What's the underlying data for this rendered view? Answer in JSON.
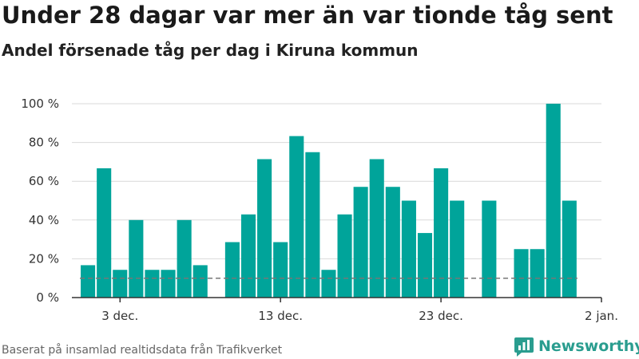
{
  "title": "Under 28 dagar var mer än var tionde tåg sent",
  "subtitle": "Andel försenade tåg per dag i Kiruna kommun",
  "source": "Baserat på insamlad realtidsdata från Trafikverket",
  "brand": {
    "name": "Newsworthy",
    "icon": "bar-chart-logo-icon",
    "color": "#2a9d8f"
  },
  "chart_data": {
    "type": "bar",
    "x_domain": [
      "2024-11-30",
      "2025-01-02"
    ],
    "x": [
      "2024-12-01",
      "2024-12-02",
      "2024-12-03",
      "2024-12-04",
      "2024-12-05",
      "2024-12-06",
      "2024-12-07",
      "2024-12-08",
      "2024-12-09",
      "2024-12-10",
      "2024-12-11",
      "2024-12-12",
      "2024-12-13",
      "2024-12-14",
      "2024-12-15",
      "2024-12-16",
      "2024-12-17",
      "2024-12-18",
      "2024-12-19",
      "2024-12-20",
      "2024-12-21",
      "2024-12-22",
      "2024-12-23",
      "2024-12-24",
      "2024-12-25",
      "2024-12-26",
      "2024-12-27",
      "2024-12-28",
      "2024-12-29",
      "2024-12-30",
      "2024-12-31",
      "2025-01-01"
    ],
    "values": [
      16.7,
      66.7,
      14.3,
      40,
      14.3,
      14.3,
      40,
      16.7,
      null,
      28.6,
      42.9,
      71.4,
      28.6,
      83.3,
      75,
      14.3,
      42.9,
      57.1,
      71.4,
      57.1,
      50,
      33.3,
      66.7,
      50,
      null,
      50,
      null,
      25,
      25,
      100,
      50,
      null
    ],
    "bar_color": "#00a49a",
    "reference_line": {
      "value": 10,
      "style": "dashed",
      "color": "#777777"
    },
    "x_ticks": [
      {
        "x": "2024-12-03",
        "label": "3 dec."
      },
      {
        "x": "2024-12-13",
        "label": "13 dec."
      },
      {
        "x": "2024-12-23",
        "label": "23 dec."
      },
      {
        "x": "2025-01-02",
        "label": "2 jan."
      }
    ],
    "y_ticks": [
      {
        "value": 0,
        "label": "0 %"
      },
      {
        "value": 20,
        "label": "20 %"
      },
      {
        "value": 40,
        "label": "40 %"
      },
      {
        "value": 60,
        "label": "60 %"
      },
      {
        "value": 80,
        "label": "80 %"
      },
      {
        "value": 100,
        "label": "100 %"
      }
    ],
    "ylim": [
      0,
      100
    ],
    "grid": true,
    "xlabel": "",
    "ylabel": ""
  }
}
